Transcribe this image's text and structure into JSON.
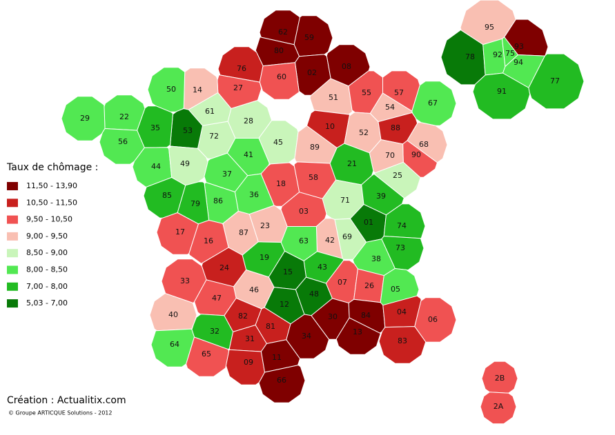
{
  "legend": {
    "title": "Taux de chômage :",
    "classes": [
      {
        "label": "11,50 - 13,90",
        "color": "#7f0000"
      },
      {
        "label": "10,50 - 11,50",
        "color": "#c8201e"
      },
      {
        "label": "9,50 - 10,50",
        "color": "#f05252"
      },
      {
        "label": "9,00 - 9,50",
        "color": "#f9bfb2"
      },
      {
        "label": "8,50 - 9,00",
        "color": "#c9f5ba"
      },
      {
        "label": "8,00 - 8,50",
        "color": "#52e852"
      },
      {
        "label": "7,00 - 8,00",
        "color": "#22bb22"
      },
      {
        "label": "5,03 - 7,00",
        "color": "#087a08"
      }
    ]
  },
  "departments": [
    {
      "code": "62",
      "color": "#7f0000"
    },
    {
      "code": "59",
      "color": "#7f0000"
    },
    {
      "code": "80",
      "color": "#7f0000"
    },
    {
      "code": "02",
      "color": "#7f0000"
    },
    {
      "code": "08",
      "color": "#7f0000"
    },
    {
      "code": "76",
      "color": "#c8201e"
    },
    {
      "code": "60",
      "color": "#f05252"
    },
    {
      "code": "27",
      "color": "#f05252"
    },
    {
      "code": "14",
      "color": "#f9bfb2"
    },
    {
      "code": "50",
      "color": "#52e852"
    },
    {
      "code": "61",
      "color": "#c9f5ba"
    },
    {
      "code": "28",
      "color": "#c9f5ba"
    },
    {
      "code": "72",
      "color": "#c9f5ba"
    },
    {
      "code": "53",
      "color": "#087a08"
    },
    {
      "code": "35",
      "color": "#22bb22"
    },
    {
      "code": "22",
      "color": "#52e852"
    },
    {
      "code": "29",
      "color": "#52e852"
    },
    {
      "code": "56",
      "color": "#52e852"
    },
    {
      "code": "44",
      "color": "#52e852"
    },
    {
      "code": "49",
      "color": "#c9f5ba"
    },
    {
      "code": "51",
      "color": "#f9bfb2"
    },
    {
      "code": "55",
      "color": "#f05252"
    },
    {
      "code": "57",
      "color": "#f05252"
    },
    {
      "code": "54",
      "color": "#f9bfb2"
    },
    {
      "code": "67",
      "color": "#52e852"
    },
    {
      "code": "10",
      "color": "#c8201e"
    },
    {
      "code": "52",
      "color": "#f9bfb2"
    },
    {
      "code": "88",
      "color": "#c8201e"
    },
    {
      "code": "68",
      "color": "#f9bfb2"
    },
    {
      "code": "90",
      "color": "#f05252"
    },
    {
      "code": "70",
      "color": "#f9bfb2"
    },
    {
      "code": "25",
      "color": "#c9f5ba"
    },
    {
      "code": "45",
      "color": "#c9f5ba"
    },
    {
      "code": "89",
      "color": "#f9bfb2"
    },
    {
      "code": "41",
      "color": "#52e852"
    },
    {
      "code": "37",
      "color": "#52e852"
    },
    {
      "code": "18",
      "color": "#f05252"
    },
    {
      "code": "58",
      "color": "#f05252"
    },
    {
      "code": "21",
      "color": "#22bb22"
    },
    {
      "code": "71",
      "color": "#c9f5ba"
    },
    {
      "code": "39",
      "color": "#22bb22"
    },
    {
      "code": "36",
      "color": "#52e852"
    },
    {
      "code": "86",
      "color": "#52e852"
    },
    {
      "code": "79",
      "color": "#22bb22"
    },
    {
      "code": "85",
      "color": "#22bb22"
    },
    {
      "code": "03",
      "color": "#f05252"
    },
    {
      "code": "01",
      "color": "#087a08"
    },
    {
      "code": "74",
      "color": "#22bb22"
    },
    {
      "code": "69",
      "color": "#c9f5ba"
    },
    {
      "code": "73",
      "color": "#22bb22"
    },
    {
      "code": "42",
      "color": "#f9bfb2"
    },
    {
      "code": "63",
      "color": "#52e852"
    },
    {
      "code": "23",
      "color": "#f9bfb2"
    },
    {
      "code": "87",
      "color": "#f9bfb2"
    },
    {
      "code": "16",
      "color": "#f05252"
    },
    {
      "code": "17",
      "color": "#f05252"
    },
    {
      "code": "19",
      "color": "#22bb22"
    },
    {
      "code": "38",
      "color": "#52e852"
    },
    {
      "code": "43",
      "color": "#22bb22"
    },
    {
      "code": "15",
      "color": "#087a08"
    },
    {
      "code": "24",
      "color": "#c8201e"
    },
    {
      "code": "33",
      "color": "#f05252"
    },
    {
      "code": "46",
      "color": "#f9bfb2"
    },
    {
      "code": "12",
      "color": "#087a08"
    },
    {
      "code": "48",
      "color": "#087a08"
    },
    {
      "code": "07",
      "color": "#f05252"
    },
    {
      "code": "26",
      "color": "#f05252"
    },
    {
      "code": "05",
      "color": "#52e852"
    },
    {
      "code": "47",
      "color": "#f05252"
    },
    {
      "code": "82",
      "color": "#c8201e"
    },
    {
      "code": "81",
      "color": "#c8201e"
    },
    {
      "code": "30",
      "color": "#7f0000"
    },
    {
      "code": "84",
      "color": "#7f0000"
    },
    {
      "code": "04",
      "color": "#c8201e"
    },
    {
      "code": "06",
      "color": "#f05252"
    },
    {
      "code": "13",
      "color": "#7f0000"
    },
    {
      "code": "83",
      "color": "#c8201e"
    },
    {
      "code": "34",
      "color": "#7f0000"
    },
    {
      "code": "40",
      "color": "#f9bfb2"
    },
    {
      "code": "32",
      "color": "#22bb22"
    },
    {
      "code": "31",
      "color": "#c8201e"
    },
    {
      "code": "64",
      "color": "#52e852"
    },
    {
      "code": "65",
      "color": "#f05252"
    },
    {
      "code": "09",
      "color": "#c8201e"
    },
    {
      "code": "11",
      "color": "#7f0000"
    },
    {
      "code": "66",
      "color": "#7f0000"
    },
    {
      "code": "2B",
      "color": "#f05252"
    },
    {
      "code": "2A",
      "color": "#f05252"
    },
    {
      "code": "95",
      "color": "#f9bfb2"
    },
    {
      "code": "78",
      "color": "#087a08"
    },
    {
      "code": "92",
      "color": "#52e852"
    },
    {
      "code": "75",
      "color": "#52e852"
    },
    {
      "code": "93",
      "color": "#7f0000"
    },
    {
      "code": "94",
      "color": "#52e852"
    },
    {
      "code": "91",
      "color": "#22bb22"
    },
    {
      "code": "77",
      "color": "#22bb22"
    }
  ],
  "credits": {
    "main": "Création : Actualitix.com",
    "copyright": "© Groupe ARTICQUE Solutions - 2012"
  }
}
